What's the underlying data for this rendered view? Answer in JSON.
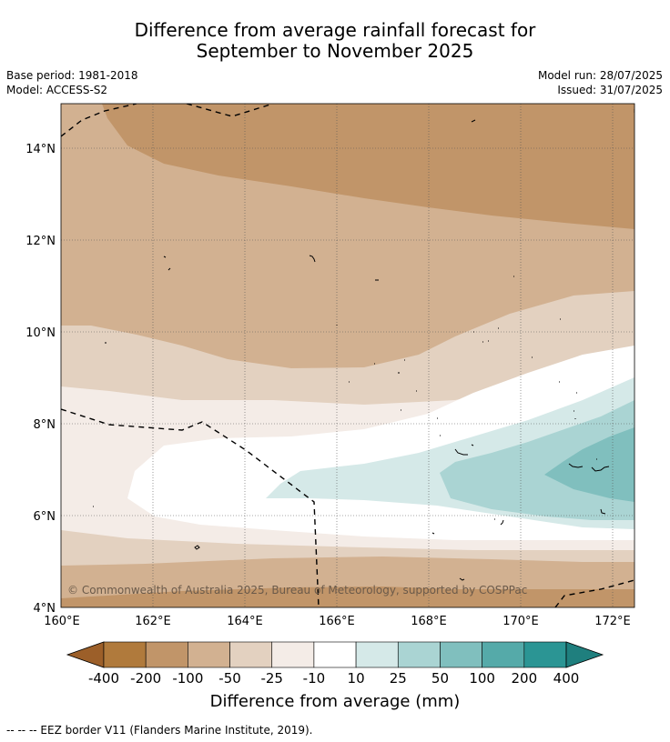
{
  "title": {
    "line1": "Difference from average rainfall forecast for",
    "line2": "September to November 2025"
  },
  "meta": {
    "base_period": "Base period: 1981-2018",
    "model": "Model: ACCESS-S2",
    "model_run": "Model run: 28/07/2025",
    "issued": "Issued: 31/07/2025"
  },
  "map": {
    "lon_labels": [
      "160°E",
      "162°E",
      "164°E",
      "166°E",
      "168°E",
      "170°E",
      "172°E"
    ],
    "lat_labels": [
      "14°N",
      "12°N",
      "10°N",
      "8°N",
      "6°N",
      "4°N"
    ],
    "copyright": "© Commonwealth of Australia 2025, Bureau of Meteorology, supported by COSPPac",
    "grid": true
  },
  "colorbar": {
    "tick_labels": [
      "-400",
      "-200",
      "-100",
      "-50",
      "-25",
      "-10",
      "10",
      "25",
      "50",
      "100",
      "200",
      "400"
    ],
    "colors": [
      "#b07a3c",
      "#c19569",
      "#d2b191",
      "#e3d1c0",
      "#f4ece7",
      "#ffffff",
      "#d5e9e8",
      "#aad4d3",
      "#80bfbe",
      "#55aaa9",
      "#2b9594"
    ],
    "under_color": "#9c5f29",
    "over_color": "#1f7f7e",
    "label": "Difference from average (mm)"
  },
  "legend": {
    "eez_text": "--  --  -- EEZ border V11 (Flanders Marine Institute, 2019)."
  }
}
